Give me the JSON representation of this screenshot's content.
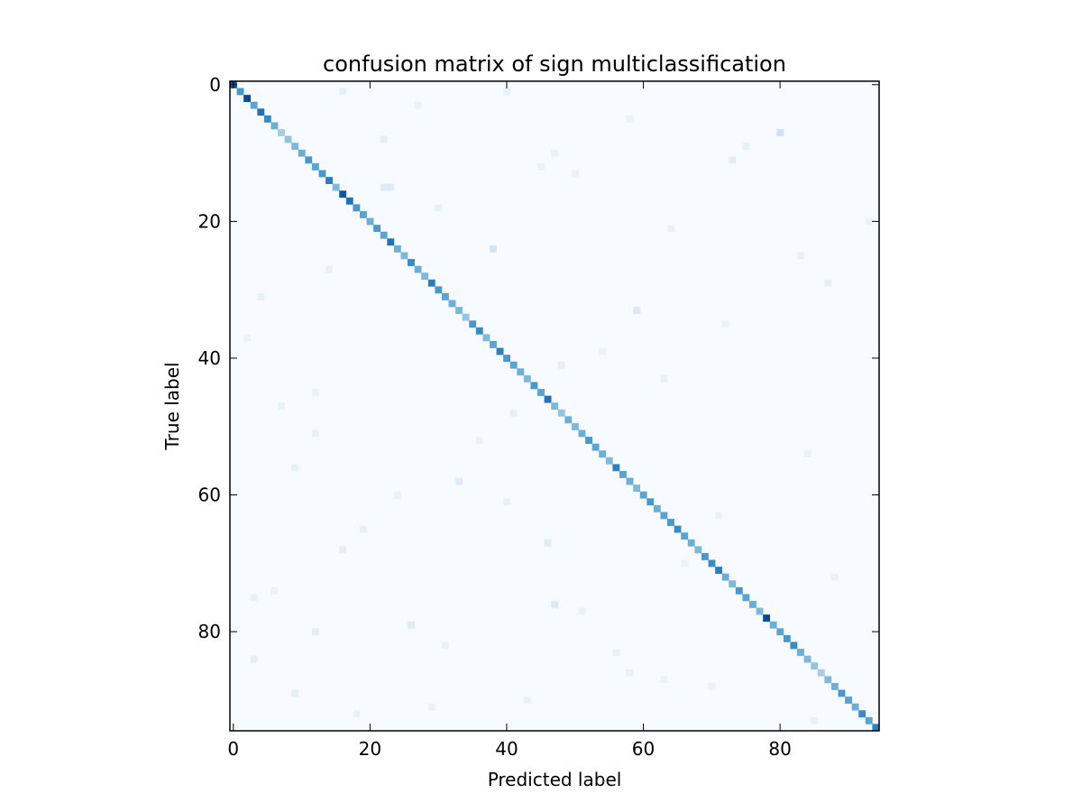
{
  "chart_data": {
    "type": "heatmap",
    "title": "confusion matrix of sign multiclassification",
    "xlabel": "Predicted label",
    "ylabel": "True label",
    "n_classes": 95,
    "xlim": [
      -0.5,
      94.5
    ],
    "ylim": [
      94.5,
      -0.5
    ],
    "x_ticks": [
      0,
      20,
      40,
      60,
      80
    ],
    "y_ticks": [
      0,
      20,
      40,
      60,
      80
    ],
    "colormap": "Blues",
    "colormap_stops": [
      "#f7fbff",
      "#deebf7",
      "#c6dbef",
      "#9ecae1",
      "#6baed6",
      "#4292c6",
      "#2171b5",
      "#08519c",
      "#08306b"
    ],
    "value_range": [
      0,
      1
    ],
    "diagonal_values": [
      0.85,
      0.6,
      0.9,
      0.55,
      0.75,
      0.65,
      0.5,
      0.35,
      0.4,
      0.45,
      0.5,
      0.6,
      0.55,
      0.6,
      0.7,
      0.45,
      0.85,
      0.75,
      0.6,
      0.55,
      0.5,
      0.6,
      0.55,
      0.75,
      0.5,
      0.45,
      0.65,
      0.5,
      0.45,
      0.7,
      0.6,
      0.55,
      0.5,
      0.45,
      0.4,
      0.6,
      0.65,
      0.45,
      0.55,
      0.7,
      0.6,
      0.55,
      0.5,
      0.45,
      0.6,
      0.55,
      0.75,
      0.45,
      0.4,
      0.5,
      0.45,
      0.5,
      0.6,
      0.55,
      0.5,
      0.45,
      0.7,
      0.55,
      0.5,
      0.45,
      0.55,
      0.6,
      0.5,
      0.55,
      0.6,
      0.65,
      0.55,
      0.5,
      0.45,
      0.6,
      0.65,
      0.7,
      0.5,
      0.45,
      0.6,
      0.55,
      0.5,
      0.45,
      0.9,
      0.5,
      0.55,
      0.6,
      0.65,
      0.5,
      0.45,
      0.4,
      0.35,
      0.45,
      0.5,
      0.6,
      0.55,
      0.5,
      0.65,
      0.55,
      0.7
    ],
    "off_diagonal_cells": [
      [
        7,
        80,
        0.2
      ],
      [
        24,
        38,
        0.18
      ],
      [
        15,
        22,
        0.12
      ],
      [
        15,
        23,
        0.12
      ],
      [
        33,
        59,
        0.15
      ],
      [
        58,
        33,
        0.12
      ],
      [
        76,
        47,
        0.14
      ],
      [
        79,
        26,
        0.12
      ],
      [
        89,
        9,
        0.1
      ],
      [
        41,
        48,
        0.1
      ],
      [
        11,
        73,
        0.1
      ],
      [
        8,
        22,
        0.1
      ],
      [
        1,
        16,
        0.08
      ],
      [
        1,
        40,
        0.08
      ],
      [
        3,
        27,
        0.07
      ],
      [
        5,
        58,
        0.07
      ],
      [
        9,
        75,
        0.08
      ],
      [
        12,
        45,
        0.07
      ],
      [
        18,
        30,
        0.08
      ],
      [
        20,
        93,
        0.07
      ],
      [
        27,
        14,
        0.08
      ],
      [
        29,
        87,
        0.1
      ],
      [
        31,
        4,
        0.08
      ],
      [
        35,
        72,
        0.07
      ],
      [
        37,
        2,
        0.07
      ],
      [
        43,
        63,
        0.08
      ],
      [
        45,
        12,
        0.07
      ],
      [
        48,
        41,
        0.09
      ],
      [
        51,
        12,
        0.08
      ],
      [
        54,
        84,
        0.07
      ],
      [
        56,
        9,
        0.08
      ],
      [
        61,
        40,
        0.08
      ],
      [
        63,
        71,
        0.07
      ],
      [
        65,
        19,
        0.08
      ],
      [
        67,
        46,
        0.12
      ],
      [
        68,
        16,
        0.1
      ],
      [
        70,
        66,
        0.07
      ],
      [
        72,
        88,
        0.07
      ],
      [
        75,
        3,
        0.08
      ],
      [
        77,
        51,
        0.07
      ],
      [
        80,
        12,
        0.1
      ],
      [
        82,
        31,
        0.08
      ],
      [
        84,
        3,
        0.1
      ],
      [
        86,
        58,
        0.08
      ],
      [
        88,
        70,
        0.08
      ],
      [
        90,
        43,
        0.07
      ],
      [
        92,
        18,
        0.07
      ],
      [
        93,
        85,
        0.08
      ],
      [
        10,
        47,
        0.07
      ],
      [
        13,
        50,
        0.07
      ],
      [
        21,
        64,
        0.07
      ],
      [
        25,
        83,
        0.08
      ],
      [
        39,
        54,
        0.07
      ],
      [
        47,
        7,
        0.08
      ],
      [
        52,
        36,
        0.07
      ],
      [
        60,
        24,
        0.07
      ],
      [
        74,
        6,
        0.07
      ],
      [
        83,
        56,
        0.08
      ],
      [
        87,
        63,
        0.07
      ],
      [
        91,
        29,
        0.07
      ]
    ]
  }
}
